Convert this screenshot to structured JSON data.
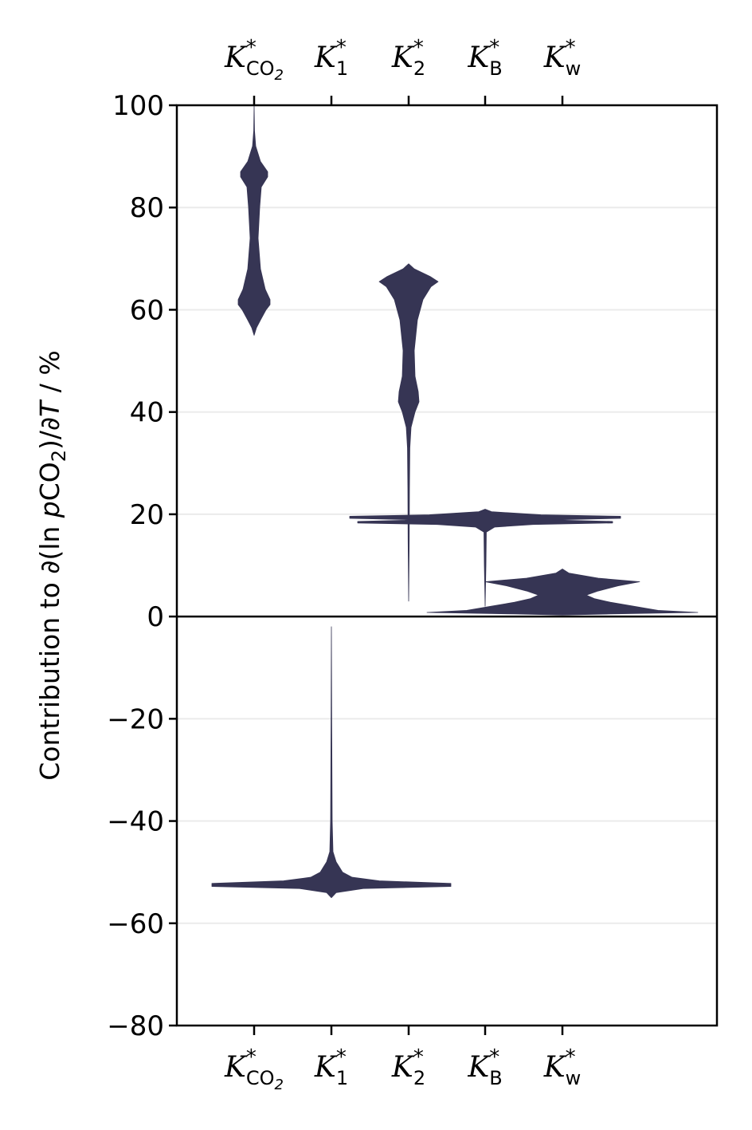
{
  "chart_data": {
    "type": "violin",
    "title": "",
    "xlabel": "",
    "ylabel": "Contribution to ∂(ln pCO2)/∂T / %",
    "ylim": [
      -80,
      100
    ],
    "yticks": [
      100,
      80,
      60,
      40,
      20,
      0,
      -20,
      -40,
      -60,
      -80
    ],
    "ytick_labels": [
      "100",
      "80",
      "60",
      "40",
      "20",
      "0",
      "−20",
      "−40",
      "−60",
      "−80"
    ],
    "grid": "horizontal",
    "zero_line": true,
    "categories_top_and_bottom": true,
    "color": "#363554",
    "categories": [
      {
        "id": "kco2",
        "label": "K*CO2",
        "min": 55,
        "max": 100,
        "profile": [
          [
            100,
            0
          ],
          [
            95,
            0.5
          ],
          [
            92,
            2
          ],
          [
            89,
            8
          ],
          [
            87,
            17
          ],
          [
            86,
            17
          ],
          [
            84,
            9
          ],
          [
            80,
            7
          ],
          [
            74,
            5
          ],
          [
            68,
            8
          ],
          [
            64,
            14
          ],
          [
            62,
            20
          ],
          [
            61,
            20
          ],
          [
            60,
            15
          ],
          [
            58,
            8
          ],
          [
            56.5,
            3
          ],
          [
            55,
            0
          ]
        ]
      },
      {
        "id": "k1",
        "label": "K*1",
        "min": -55,
        "max": -2,
        "profile": [
          [
            -2,
            0
          ],
          [
            -20,
            0.4
          ],
          [
            -40,
            1
          ],
          [
            -46,
            2
          ],
          [
            -48,
            6
          ],
          [
            -49,
            10
          ],
          [
            -50,
            14
          ],
          [
            -51,
            26
          ],
          [
            -51.7,
            60
          ],
          [
            -52.2,
            150
          ],
          [
            -52.8,
            150
          ],
          [
            -53.2,
            40
          ],
          [
            -54,
            6
          ],
          [
            -55,
            0
          ]
        ]
      },
      {
        "id": "k2",
        "label": "K*2",
        "min": 3,
        "max": 69,
        "profile": [
          [
            69,
            0
          ],
          [
            68,
            7
          ],
          [
            66.5,
            27
          ],
          [
            65.5,
            37
          ],
          [
            64.5,
            28
          ],
          [
            62,
            18
          ],
          [
            58,
            11
          ],
          [
            52,
            7
          ],
          [
            47,
            8
          ],
          [
            44,
            12
          ],
          [
            42,
            13
          ],
          [
            40,
            8
          ],
          [
            37,
            3
          ],
          [
            33,
            1.5
          ],
          [
            25,
            1
          ],
          [
            15,
            0.7
          ],
          [
            3,
            0
          ]
        ]
      },
      {
        "id": "kb",
        "label": "K*B",
        "min": 2,
        "max": 21,
        "profile": [
          [
            21,
            0
          ],
          [
            20.5,
            8
          ],
          [
            19.9,
            70
          ],
          [
            19.6,
            170
          ],
          [
            19.2,
            170
          ],
          [
            18.9,
            80
          ],
          [
            18.6,
            160
          ],
          [
            18.3,
            160
          ],
          [
            18,
            60
          ],
          [
            17.5,
            12
          ],
          [
            16.5,
            1.5
          ],
          [
            10,
            1
          ],
          [
            2,
            0
          ]
        ]
      },
      {
        "id": "kw",
        "label": "K*w",
        "min": 0.3,
        "max": 9.3,
        "profile": [
          [
            9.3,
            0
          ],
          [
            8.5,
            8
          ],
          [
            7.5,
            45
          ],
          [
            6.8,
            97
          ],
          [
            6,
            70
          ],
          [
            5,
            45
          ],
          [
            4.2,
            30
          ],
          [
            3.5,
            40
          ],
          [
            2.8,
            60
          ],
          [
            2,
            90
          ],
          [
            1.2,
            120
          ],
          [
            0.8,
            170
          ],
          [
            0.5,
            60
          ],
          [
            0.3,
            0
          ]
        ]
      }
    ]
  }
}
